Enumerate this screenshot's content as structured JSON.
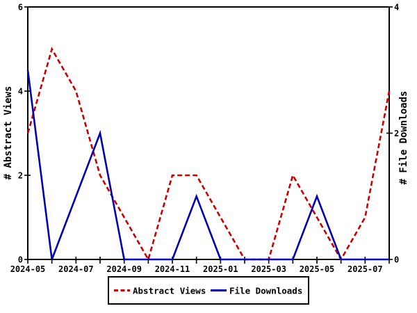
{
  "figure": {
    "background": "#ffffff",
    "axis_color": "#000000"
  },
  "chart_data": {
    "type": "line",
    "title": "",
    "x": [
      "2024-05",
      "2024-06",
      "2024-07",
      "2024-08",
      "2024-09",
      "2024-10",
      "2024-11",
      "2024-12",
      "2025-01",
      "2025-02",
      "2025-03",
      "2025-04",
      "2025-05",
      "2025-06",
      "2025-07",
      "2025-08"
    ],
    "x_tick_labels": [
      "2024-05",
      "2024-07",
      "2024-09",
      "2024-11",
      "2025-01",
      "2025-03",
      "2025-05",
      "2025-07"
    ],
    "left_axis": {
      "label": "# Abstract Views",
      "min": 0,
      "max": 6,
      "ticks": [
        0,
        2,
        4,
        6
      ]
    },
    "right_axis": {
      "label": "# File Downloads",
      "min": 0,
      "max": 4,
      "ticks": [
        0,
        2,
        4
      ]
    },
    "series": [
      {
        "name": "Abstract Views",
        "axis": "left",
        "color": "#cc0000",
        "line_style": "dashed",
        "values": [
          3,
          5,
          4,
          2,
          1,
          0,
          2,
          2,
          1,
          0,
          0,
          2,
          1,
          0,
          1,
          4
        ]
      },
      {
        "name": "File Downloads",
        "axis": "right",
        "color": "#0000b8",
        "line_style": "solid",
        "values": [
          3,
          0,
          1,
          2,
          0,
          0,
          0,
          1,
          0,
          0,
          0,
          0,
          1,
          0,
          0,
          0
        ]
      }
    ],
    "legend": {
      "position": "bottom-center",
      "boxed": true,
      "items": [
        "Abstract Views",
        "File Downloads"
      ]
    },
    "grid": false
  }
}
